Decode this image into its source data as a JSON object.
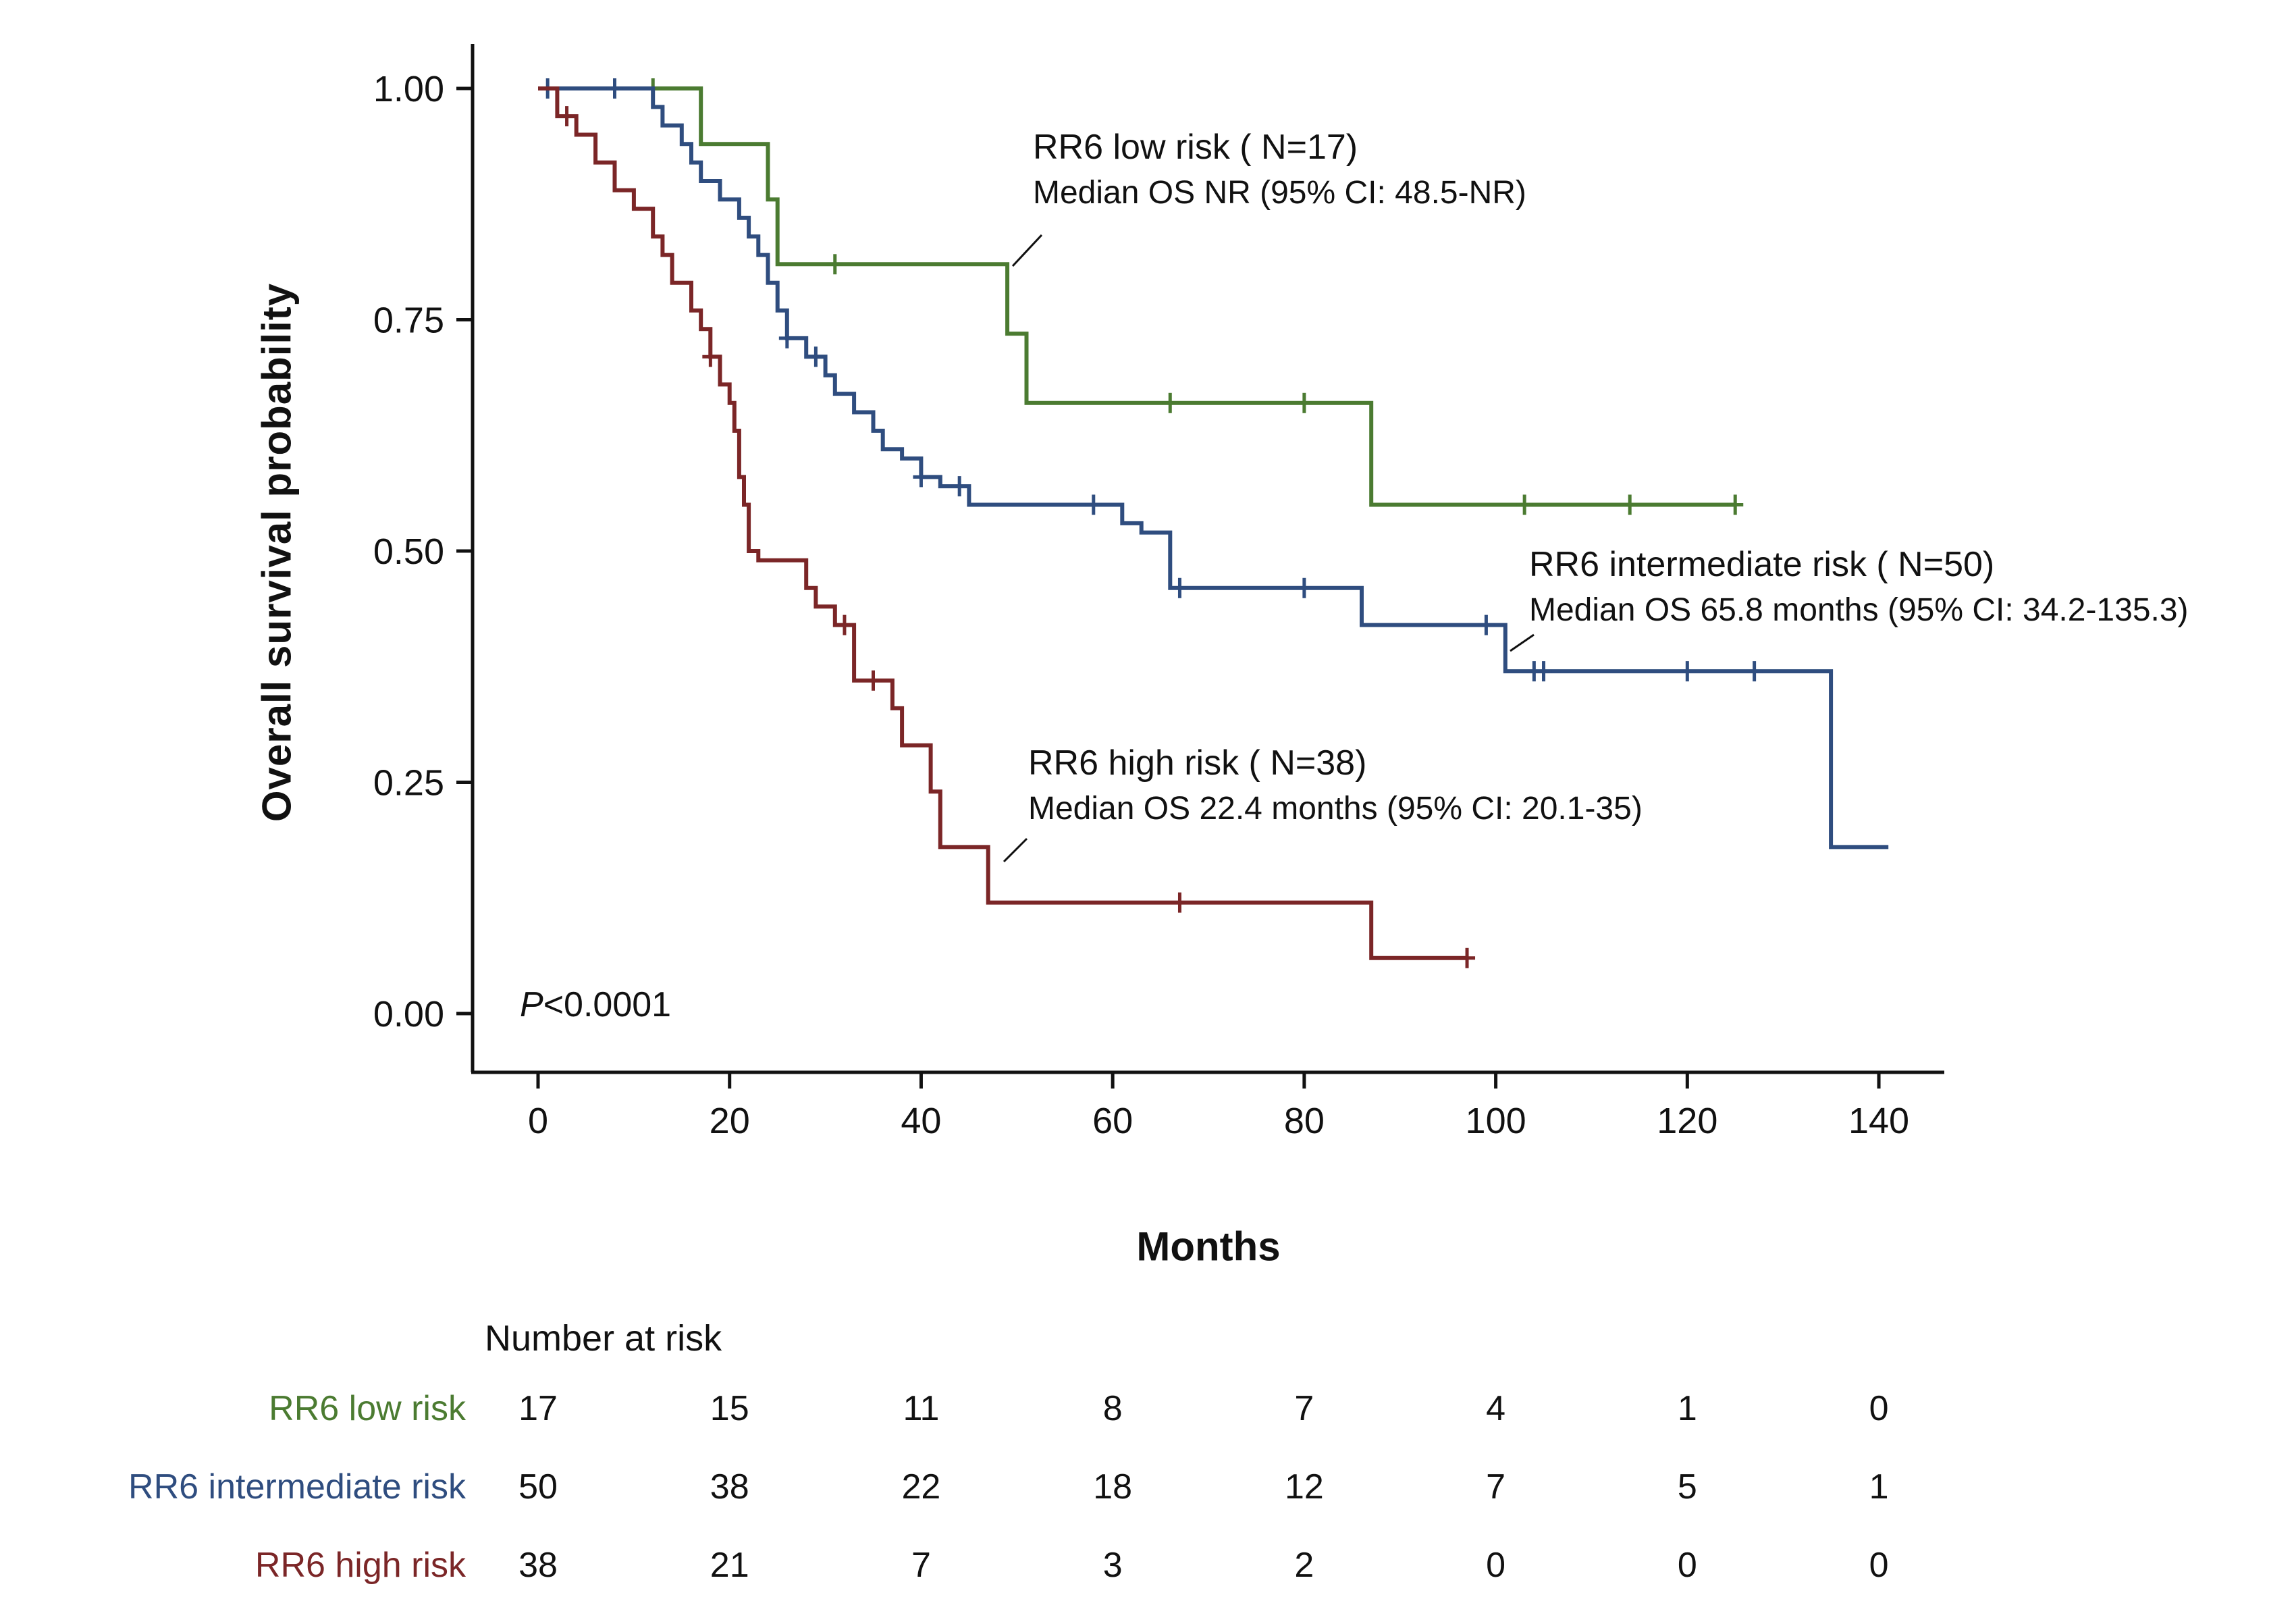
{
  "chart_data": {
    "type": "line",
    "subtype": "kaplan-meier-step",
    "title": "",
    "xlabel": "Months",
    "ylabel": "Overall survival probability",
    "xlim": [
      0,
      147
    ],
    "ylim": [
      0,
      1.0
    ],
    "x_ticks": [
      0,
      20,
      40,
      60,
      80,
      100,
      120,
      140
    ],
    "y_ticks": [
      "0.00",
      "0.25",
      "0.50",
      "0.75",
      "1.00"
    ],
    "grid": false,
    "legend_position": "annotations-inline",
    "pvalue": {
      "prefix": "P",
      "rest": "<0.0001"
    },
    "series": [
      {
        "id": "low-risk",
        "name": "RR6 low risk",
        "n": 17,
        "color": "#4b7b31",
        "label_line1": "RR6 low risk ( N=17)",
        "label_line2": "Median OS NR (95% CI: 48.5-NR)",
        "steps": [
          [
            0,
            1.0
          ],
          [
            17,
            1.0
          ],
          [
            17,
            0.94
          ],
          [
            24,
            0.94
          ],
          [
            24,
            0.88
          ],
          [
            25,
            0.88
          ],
          [
            25,
            0.81
          ],
          [
            49,
            0.81
          ],
          [
            49,
            0.735
          ],
          [
            51,
            0.735
          ],
          [
            51,
            0.66
          ],
          [
            87,
            0.66
          ],
          [
            87,
            0.55
          ],
          [
            125,
            0.55
          ]
        ],
        "censors": [
          12,
          31,
          66,
          80,
          103,
          114,
          125
        ]
      },
      {
        "id": "intermediate-risk",
        "name": "RR6 intermediate risk",
        "n": 50,
        "color": "#2f4d7f",
        "label_line1": "RR6 intermediate risk ( N=50)",
        "label_line2": "Median OS 65.8 months (95% CI: 34.2-135.3)",
        "steps": [
          [
            0,
            1.0
          ],
          [
            12,
            1.0
          ],
          [
            12,
            0.98
          ],
          [
            13,
            0.98
          ],
          [
            13,
            0.96
          ],
          [
            15,
            0.96
          ],
          [
            15,
            0.94
          ],
          [
            16,
            0.94
          ],
          [
            16,
            0.92
          ],
          [
            17,
            0.92
          ],
          [
            17,
            0.9
          ],
          [
            19,
            0.9
          ],
          [
            19,
            0.88
          ],
          [
            21,
            0.88
          ],
          [
            21,
            0.86
          ],
          [
            22,
            0.86
          ],
          [
            22,
            0.84
          ],
          [
            23,
            0.84
          ],
          [
            23,
            0.82
          ],
          [
            24,
            0.82
          ],
          [
            24,
            0.79
          ],
          [
            25,
            0.79
          ],
          [
            25,
            0.76
          ],
          [
            26,
            0.76
          ],
          [
            26,
            0.73
          ],
          [
            28,
            0.73
          ],
          [
            28,
            0.71
          ],
          [
            30,
            0.71
          ],
          [
            30,
            0.69
          ],
          [
            31,
            0.69
          ],
          [
            31,
            0.67
          ],
          [
            33,
            0.67
          ],
          [
            33,
            0.65
          ],
          [
            35,
            0.65
          ],
          [
            35,
            0.63
          ],
          [
            36,
            0.63
          ],
          [
            36,
            0.61
          ],
          [
            38,
            0.61
          ],
          [
            38,
            0.6
          ],
          [
            40,
            0.6
          ],
          [
            40,
            0.58
          ],
          [
            42,
            0.58
          ],
          [
            42,
            0.57
          ],
          [
            45,
            0.57
          ],
          [
            45,
            0.55
          ],
          [
            61,
            0.55
          ],
          [
            61,
            0.53
          ],
          [
            63,
            0.53
          ],
          [
            63,
            0.52
          ],
          [
            66,
            0.52
          ],
          [
            66,
            0.46
          ],
          [
            86,
            0.46
          ],
          [
            86,
            0.42
          ],
          [
            101,
            0.42
          ],
          [
            101,
            0.37
          ],
          [
            135,
            0.37
          ],
          [
            135,
            0.18
          ],
          [
            141,
            0.18
          ]
        ],
        "censors": [
          1,
          8,
          26,
          29,
          40,
          44,
          58,
          67,
          80,
          99,
          104,
          105,
          120,
          127
        ]
      },
      {
        "id": "high-risk",
        "name": "RR6 high risk",
        "n": 38,
        "color": "#7b2627",
        "label_line1": "RR6 high risk ( N=38)",
        "label_line2": "Median OS 22.4 months (95% CI: 20.1-35)",
        "steps": [
          [
            0,
            1.0
          ],
          [
            2,
            1.0
          ],
          [
            2,
            0.97
          ],
          [
            4,
            0.97
          ],
          [
            4,
            0.95
          ],
          [
            6,
            0.95
          ],
          [
            6,
            0.92
          ],
          [
            8,
            0.92
          ],
          [
            8,
            0.89
          ],
          [
            10,
            0.89
          ],
          [
            10,
            0.87
          ],
          [
            12,
            0.87
          ],
          [
            12,
            0.84
          ],
          [
            13,
            0.84
          ],
          [
            13,
            0.82
          ],
          [
            14,
            0.82
          ],
          [
            14,
            0.79
          ],
          [
            16,
            0.79
          ],
          [
            16,
            0.76
          ],
          [
            17,
            0.76
          ],
          [
            17,
            0.74
          ],
          [
            18,
            0.74
          ],
          [
            18,
            0.71
          ],
          [
            19,
            0.71
          ],
          [
            19,
            0.68
          ],
          [
            20,
            0.68
          ],
          [
            20,
            0.66
          ],
          [
            20.5,
            0.66
          ],
          [
            20.5,
            0.63
          ],
          [
            21,
            0.63
          ],
          [
            21,
            0.58
          ],
          [
            21.5,
            0.58
          ],
          [
            21.5,
            0.55
          ],
          [
            22,
            0.55
          ],
          [
            22,
            0.5
          ],
          [
            23,
            0.5
          ],
          [
            23,
            0.49
          ],
          [
            28,
            0.49
          ],
          [
            28,
            0.46
          ],
          [
            29,
            0.46
          ],
          [
            29,
            0.44
          ],
          [
            31,
            0.44
          ],
          [
            31,
            0.42
          ],
          [
            33,
            0.42
          ],
          [
            33,
            0.36
          ],
          [
            37,
            0.36
          ],
          [
            37,
            0.33
          ],
          [
            38,
            0.33
          ],
          [
            38,
            0.29
          ],
          [
            41,
            0.29
          ],
          [
            41,
            0.24
          ],
          [
            42,
            0.24
          ],
          [
            42,
            0.18
          ],
          [
            47,
            0.18
          ],
          [
            47,
            0.12
          ],
          [
            87,
            0.12
          ],
          [
            87,
            0.06
          ],
          [
            97,
            0.06
          ]
        ],
        "censors": [
          3,
          18,
          32,
          35,
          67,
          97
        ]
      }
    ],
    "risk_table": {
      "title": "Number at risk",
      "months": [
        0,
        20,
        40,
        60,
        80,
        100,
        120,
        140
      ],
      "rows": [
        {
          "label": "RR6 low risk",
          "color": "#4b7b31",
          "counts": [
            17,
            15,
            11,
            8,
            7,
            4,
            1,
            0
          ]
        },
        {
          "label": "RR6 intermediate risk",
          "color": "#2f4d7f",
          "counts": [
            50,
            38,
            22,
            18,
            12,
            7,
            5,
            1
          ]
        },
        {
          "label": "RR6 high risk",
          "color": "#7b2627",
          "counts": [
            38,
            21,
            7,
            3,
            2,
            0,
            0,
            0
          ]
        }
      ]
    }
  }
}
